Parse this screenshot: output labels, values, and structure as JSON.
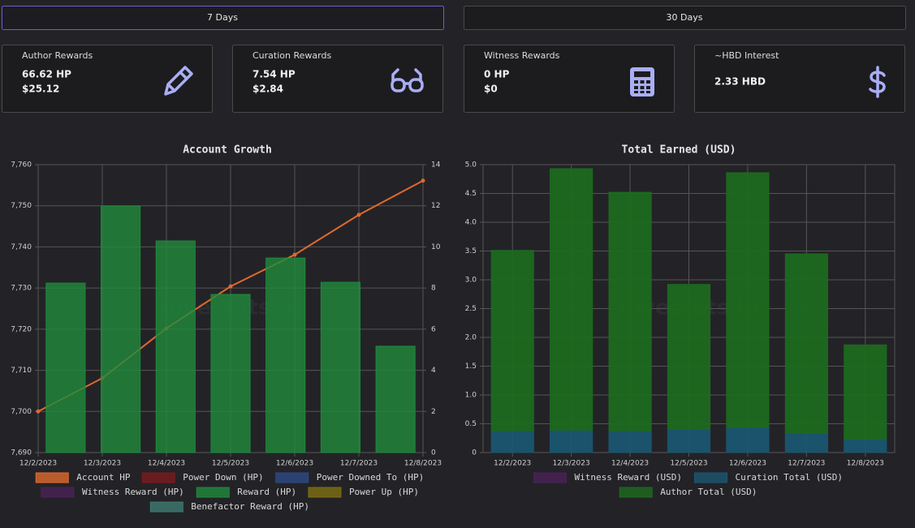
{
  "tabs": [
    "7 Days",
    "30 Days"
  ],
  "cards": [
    {
      "title": "Author Rewards",
      "lines": [
        "66.62 HP",
        "$25.12"
      ]
    },
    {
      "title": "Curation Rewards",
      "lines": [
        "7.54 HP",
        "$2.84"
      ]
    },
    {
      "title": "Witness Rewards",
      "lines": [
        "0 HP",
        "$0"
      ]
    },
    {
      "title": "~HBD Interest",
      "lines": [
        "2.33 HBD"
      ]
    }
  ],
  "chart_data": [
    {
      "type": "bar",
      "title": "Account Growth",
      "watermark": "hivestats.io",
      "grid": true,
      "categories": [
        "12/2/2023",
        "12/3/2023",
        "12/4/2023",
        "12/5/2023",
        "12/6/2023",
        "12/7/2023",
        "12/8/2023"
      ],
      "ylim": [
        7690,
        7760
      ],
      "yticks": [
        {
          "value": 7690,
          "label": "7,690"
        },
        {
          "value": 7700,
          "label": "7,700"
        },
        {
          "value": 7710,
          "label": "7,710"
        },
        {
          "value": 7720,
          "label": "7,720"
        },
        {
          "value": 7730,
          "label": "7,730"
        },
        {
          "value": 7740,
          "label": "7,740"
        },
        {
          "value": 7750,
          "label": "7,750"
        },
        {
          "value": 7760,
          "label": "7,760"
        }
      ],
      "y2lim": [
        0,
        14
      ],
      "y2ticks": [
        0,
        2,
        4,
        6,
        8,
        10,
        12,
        14
      ],
      "series": [
        {
          "name": "Account HP",
          "color": "#e0692e",
          "type": "line",
          "values": [
            7700,
            7708.1,
            7720.2,
            7730.4,
            7738.1,
            7747.8,
            7756.1
          ]
        },
        {
          "name": "Power Down (HP)",
          "color": "#7a1a1e"
        },
        {
          "name": "Power Downed To (HP)",
          "color": "#2c4a86"
        },
        {
          "name": "Witness Reward (HP)",
          "color": "#4a2258"
        },
        {
          "name": "Reward (HP)",
          "color": "#1f8a3c",
          "axis": "y2",
          "values": [
            8.24,
            11.99,
            10.29,
            7.69,
            9.46,
            8.28,
            5.17
          ]
        },
        {
          "name": "Power Up (HP)",
          "color": "#7d6f12"
        },
        {
          "name": "Benefactor Reward (HP)",
          "color": "#3d7a72"
        }
      ]
    },
    {
      "type": "bar",
      "stacked": true,
      "title": "Total Earned (USD)",
      "watermark": "hivestats.io",
      "grid": true,
      "categories": [
        "12/2/2023",
        "12/3/2023",
        "12/4/2023",
        "12/5/2023",
        "12/6/2023",
        "12/7/2023",
        "12/8/2023"
      ],
      "ylim": [
        0,
        5
      ],
      "yticks": [
        0,
        0.5,
        {
          "value": 1,
          "label": "1.0"
        },
        1.5,
        {
          "value": 2,
          "label": "2.0"
        },
        2.5,
        {
          "value": 3,
          "label": "3.0"
        },
        3.5,
        {
          "value": 4,
          "label": "4.0"
        },
        4.5,
        {
          "value": 5,
          "label": "5.0"
        }
      ],
      "series": [
        {
          "name": "Witness Reward (USD)",
          "color": "#4a2258",
          "values": [
            0,
            0,
            0,
            0,
            0,
            0,
            0
          ]
        },
        {
          "name": "Curation Total (USD)",
          "color": "#1b5670",
          "values": [
            0.38,
            0.39,
            0.38,
            0.41,
            0.44,
            0.34,
            0.23
          ]
        },
        {
          "name": "Author Total (USD)",
          "color": "#1d6a1f",
          "values": [
            3.13,
            4.54,
            4.14,
            2.51,
            4.42,
            3.11,
            1.64
          ]
        }
      ]
    }
  ]
}
